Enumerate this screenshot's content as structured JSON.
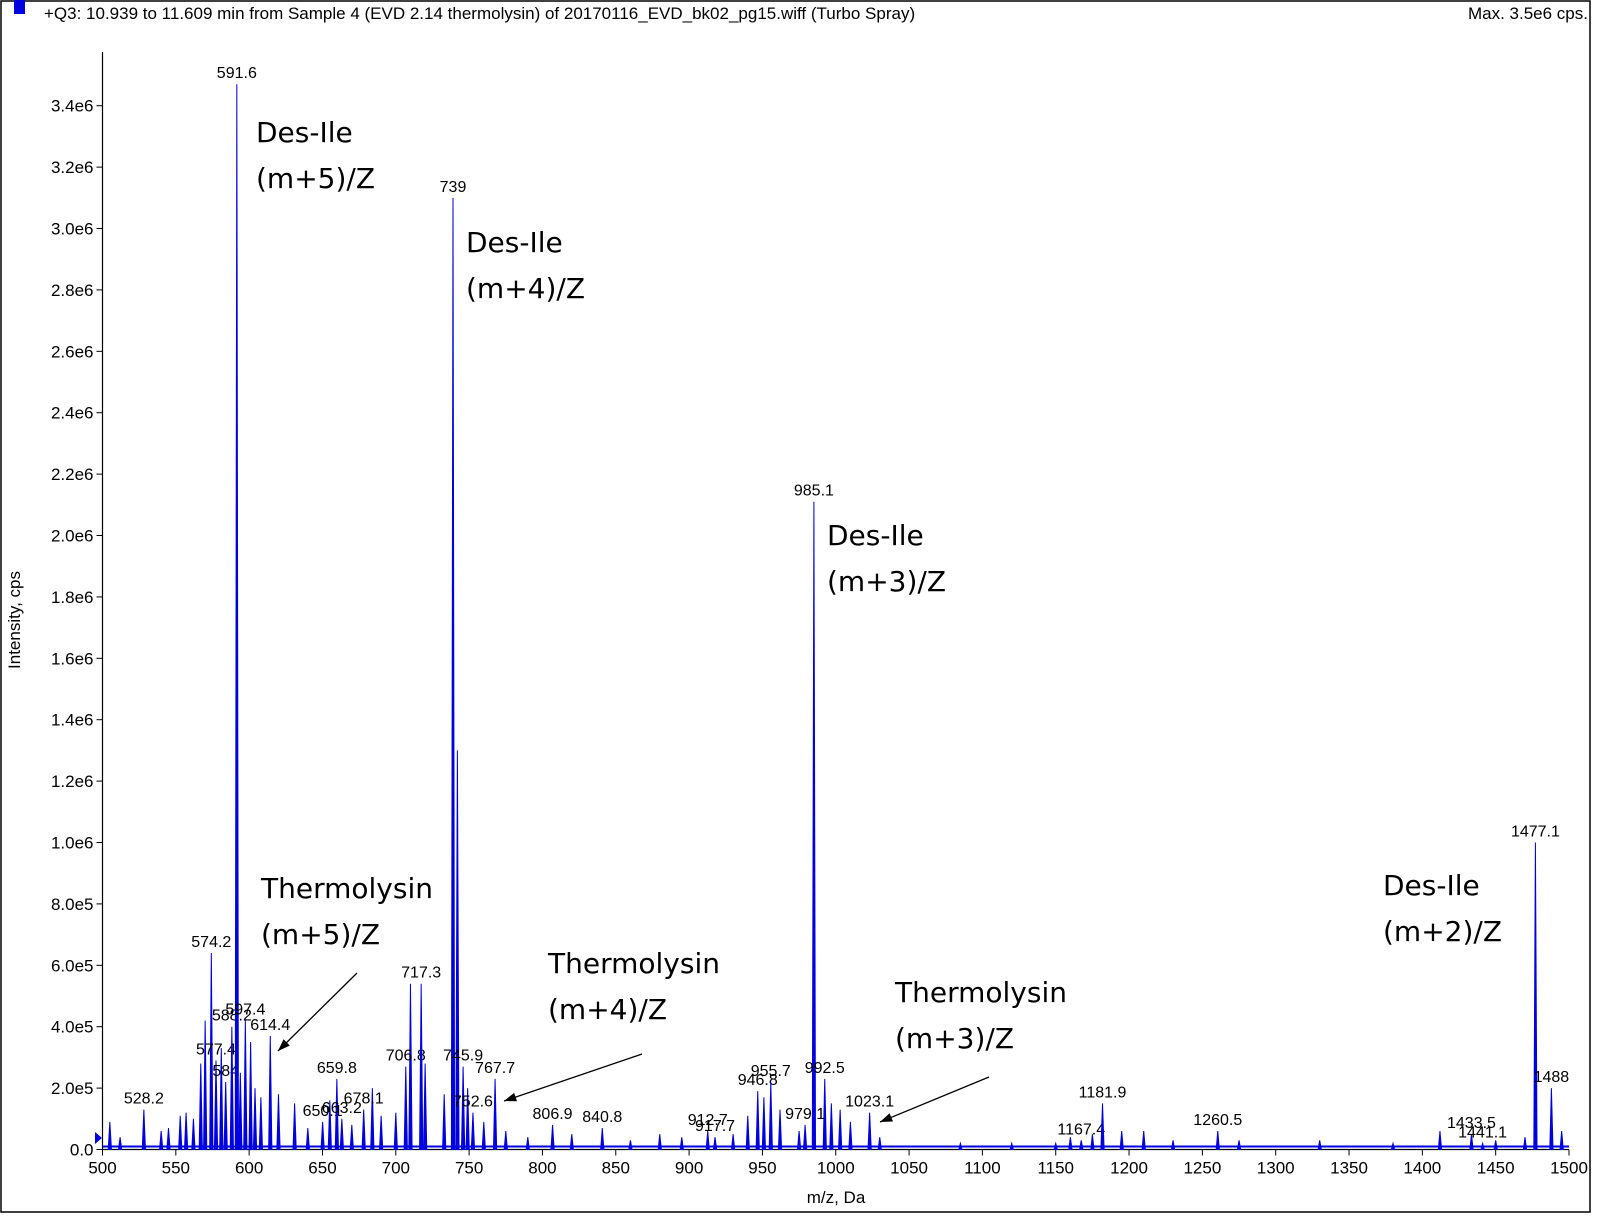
{
  "chart_data": {
    "type": "spectrum",
    "title": "+Q3: 10.939 to 11.609 min from Sample 4 (EVD 2.14 thermolysin) of 20170116_EVD_bk02_pg15.wiff (Turbo Spray)",
    "max_label": "Max. 3.5e6 cps.",
    "x_label": "m/z, Da",
    "y_label": "Intensity, cps",
    "color": "#0000e0",
    "xlim": [
      500,
      1500
    ],
    "xticks": [
      500,
      550,
      600,
      650,
      700,
      750,
      800,
      850,
      900,
      950,
      1000,
      1050,
      1100,
      1150,
      1200,
      1250,
      1300,
      1350,
      1400,
      1450,
      1500
    ],
    "ylim": [
      0,
      3575000
    ],
    "yticks": [
      {
        "value": 0,
        "label": "0.0"
      },
      {
        "value": 200000,
        "label": "2.0e5"
      },
      {
        "value": 400000,
        "label": "4.0e5"
      },
      {
        "value": 600000,
        "label": "6.0e5"
      },
      {
        "value": 800000,
        "label": "8.0e5"
      },
      {
        "value": 1000000,
        "label": "1.0e6"
      },
      {
        "value": 1200000,
        "label": "1.2e6"
      },
      {
        "value": 1400000,
        "label": "1.4e6"
      },
      {
        "value": 1600000,
        "label": "1.6e6"
      },
      {
        "value": 1800000,
        "label": "1.8e6"
      },
      {
        "value": 2000000,
        "label": "2.0e6"
      },
      {
        "value": 2200000,
        "label": "2.2e6"
      },
      {
        "value": 2400000,
        "label": "2.4e6"
      },
      {
        "value": 2600000,
        "label": "2.6e6"
      },
      {
        "value": 2800000,
        "label": "2.8e6"
      },
      {
        "value": 3000000,
        "label": "3.0e6"
      },
      {
        "value": 3200000,
        "label": "3.2e6"
      },
      {
        "value": 3400000,
        "label": "3.4e6"
      }
    ],
    "x": [
      528.2,
      574.2,
      577.4,
      584.0,
      588.2,
      591.6,
      597.4,
      614.4,
      650.1,
      659.8,
      663.2,
      678.1,
      706.8,
      717.3,
      739.0,
      745.9,
      752.6,
      767.7,
      806.9,
      840.8,
      912.7,
      917.7,
      946.8,
      955.7,
      979.1,
      985.1,
      992.5,
      1023.1,
      1167.4,
      1181.9,
      1260.5,
      1433.5,
      1441.1,
      1477.1,
      1488.0
    ],
    "values": [
      130000,
      640000,
      290000,
      220000,
      400000,
      3470000,
      420000,
      370000,
      90000,
      230000,
      100000,
      130000,
      270000,
      540000,
      3100000,
      270000,
      120000,
      230000,
      80000,
      70000,
      60000,
      40000,
      190000,
      220000,
      80000,
      2110000,
      230000,
      120000,
      30000,
      150000,
      60000,
      50000,
      20000,
      1000000,
      200000
    ],
    "unlabeled_peaks": {
      "x": [
        505,
        512,
        540,
        545,
        553,
        557,
        562,
        567,
        570,
        581,
        594,
        601,
        604,
        608,
        620,
        631,
        640,
        655,
        670,
        684,
        690,
        700,
        710,
        720,
        733,
        742,
        749,
        760,
        775,
        790,
        820,
        860,
        880,
        895,
        930,
        940,
        951,
        962,
        975,
        997,
        1003,
        1010,
        1030,
        1085,
        1120,
        1150,
        1160,
        1175,
        1195,
        1210,
        1230,
        1275,
        1330,
        1380,
        1412,
        1450,
        1470,
        1495
      ],
      "values": [
        90000,
        40000,
        60000,
        70000,
        110000,
        120000,
        100000,
        280000,
        420000,
        330000,
        250000,
        350000,
        200000,
        170000,
        180000,
        150000,
        70000,
        160000,
        80000,
        200000,
        110000,
        120000,
        540000,
        280000,
        180000,
        1300000,
        200000,
        90000,
        60000,
        40000,
        50000,
        30000,
        50000,
        40000,
        50000,
        110000,
        170000,
        130000,
        60000,
        150000,
        130000,
        90000,
        40000,
        20000,
        20000,
        20000,
        40000,
        50000,
        60000,
        60000,
        30000,
        30000,
        30000,
        20000,
        60000,
        30000,
        40000,
        60000
      ]
    },
    "annotations": [
      [
        "Des-Ile",
        "(m+5)/Z"
      ],
      [
        "Des-Ile",
        "(m+4)/Z"
      ],
      [
        "Des-Ile",
        "(m+3)/Z"
      ],
      [
        "Des-Ile",
        "(m+2)/Z"
      ],
      [
        "Thermolysin",
        "(m+5)/Z"
      ],
      [
        "Thermolysin",
        "(m+4)/Z"
      ],
      [
        "Thermolysin",
        "(m+3)/Z"
      ]
    ]
  }
}
